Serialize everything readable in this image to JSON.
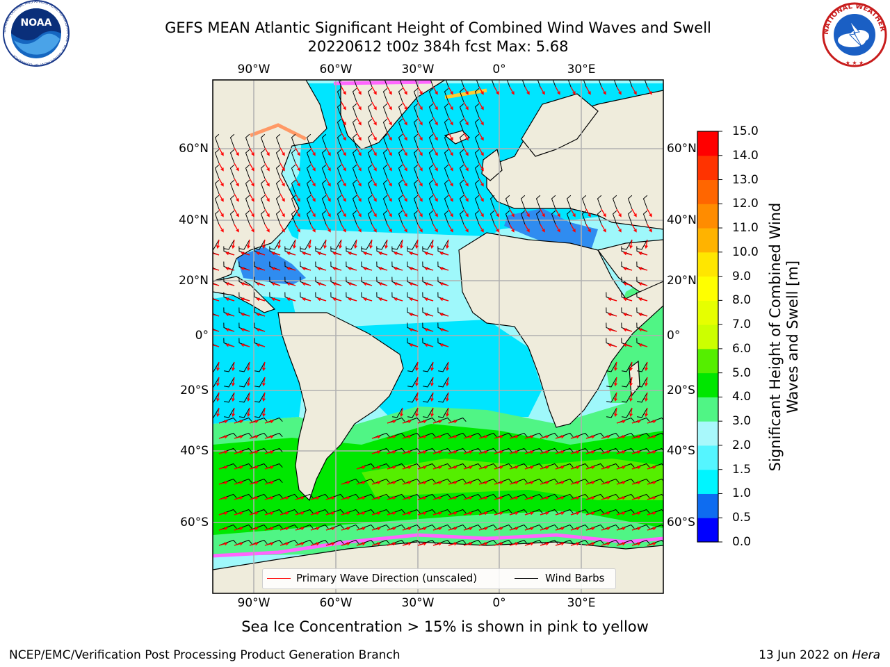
{
  "header": {
    "title_line1": "GEFS MEAN Atlantic Significant Height of Combined Wind Waves and Swell",
    "title_line2": "20220612 t00z 384h fcst   Max: 5.68"
  },
  "logos": {
    "left": "NOAA",
    "left_ring": "NATIONAL OCEANIC AND ATMOSPHERIC ADMINISTRATION · U.S. DEPARTMENT OF COMMERCE",
    "right": "NATIONAL WEATHER SERVICE"
  },
  "map": {
    "lon_ticks": [
      "90°W",
      "60°W",
      "30°W",
      "0°",
      "30°E"
    ],
    "lat_ticks": [
      "60°N",
      "40°N",
      "20°N",
      "0°",
      "20°S",
      "40°S",
      "60°S"
    ],
    "land_color": "#efecdc",
    "ocean_colors": {
      "calm": "#2f8cf0",
      "low": "#00e5ff",
      "mid": "#9ff8fb",
      "high": "#50f585",
      "higher": "#00e800",
      "highest": "#55ee00"
    },
    "ice_colors": [
      "#ff66ff",
      "#ff9966",
      "#ffcc33"
    ],
    "wave_arrow_color": "#ff0000",
    "barb_color": "#000000"
  },
  "colorbar": {
    "ticks": [
      "0.0",
      "0.5",
      "1.0",
      "1.5",
      "2.0",
      "3.0",
      "4.0",
      "5.0",
      "6.0",
      "7.0",
      "8.0",
      "9.0",
      "10.0",
      "11.0",
      "12.0",
      "13.0",
      "14.0",
      "15.0"
    ],
    "colors": [
      "#0000ff",
      "#0e6cf0",
      "#00f5ff",
      "#55f5ff",
      "#a8f8fb",
      "#50f585",
      "#00e600",
      "#55ee00",
      "#ccff00",
      "#e6ff00",
      "#ffff00",
      "#ffe600",
      "#ffb300",
      "#ff8c00",
      "#ff6600",
      "#ff3300",
      "#ff0000"
    ],
    "label": "Significant Height of Combined Wind Waves and Swell [m]"
  },
  "legend": {
    "wave_label": "Primary Wave Direction (unscaled)",
    "barb_label": "Wind Barbs"
  },
  "footer": {
    "subtitle": "Sea Ice Concentration > 15% is shown in pink to yellow",
    "left": "NCEP/EMC/Verification Post Processing Product Generation Branch",
    "date": "13 Jun 2022 on",
    "host": "Hera"
  }
}
